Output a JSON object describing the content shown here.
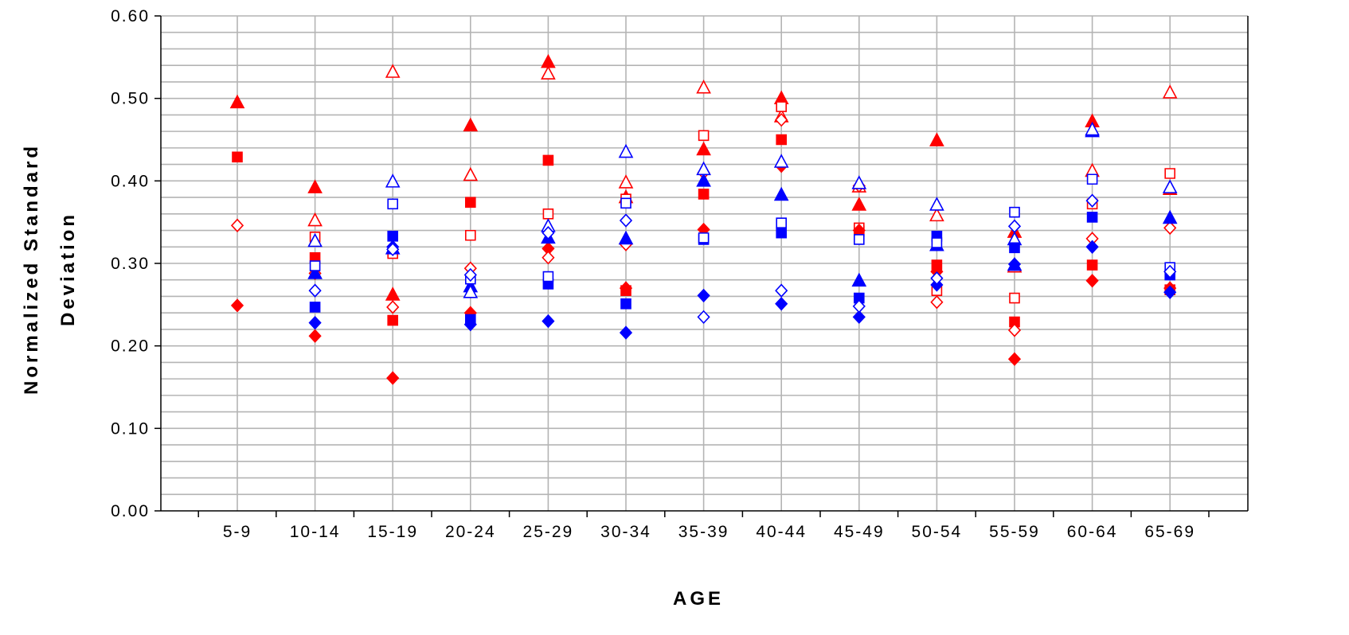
{
  "chart_data": {
    "type": "scatter",
    "xlabel": "AGE",
    "ylabel_lines": [
      "Normalized Standard",
      "Deviation"
    ],
    "categories": [
      "5-9",
      "10-14",
      "15-19",
      "20-24",
      "25-29",
      "30-34",
      "35-39",
      "40-44",
      "45-49",
      "50-54",
      "55-59",
      "60-64",
      "65-69"
    ],
    "ylim": [
      0,
      0.6
    ],
    "y_ticks": [
      "0.00",
      "0.10",
      "0.20",
      "0.30",
      "0.40",
      "0.50",
      "0.60"
    ],
    "y_minor_step": 0.02,
    "grid": true,
    "colors": {
      "red": "#ff0000",
      "blue": "#0000ff",
      "grid": "#b4b4b4"
    },
    "series": [
      {
        "color": "red",
        "marker": "triangle",
        "filled": true,
        "values": [
          0.495,
          0.392,
          0.262,
          0.467,
          0.544,
          0.38,
          0.438,
          0.5,
          0.371,
          0.449,
          0.338,
          0.472,
          0.39
        ]
      },
      {
        "color": "red",
        "marker": "triangle",
        "filled": false,
        "values": [
          null,
          0.352,
          0.532,
          0.407,
          0.53,
          0.398,
          0.513,
          0.478,
          0.393,
          0.358,
          0.296,
          0.412,
          0.507
        ]
      },
      {
        "color": "red",
        "marker": "square",
        "filled": true,
        "values": [
          0.429,
          0.307,
          0.231,
          0.374,
          0.425,
          0.267,
          0.384,
          0.45,
          0.339,
          0.298,
          0.229,
          0.298,
          0.268
        ]
      },
      {
        "color": "red",
        "marker": "square",
        "filled": false,
        "values": [
          null,
          0.332,
          0.312,
          0.334,
          0.36,
          0.378,
          0.455,
          0.49,
          0.343,
          0.267,
          0.258,
          0.372,
          0.409
        ]
      },
      {
        "color": "red",
        "marker": "diamond",
        "filled": true,
        "values": [
          0.249,
          0.212,
          0.161,
          0.24,
          0.318,
          0.27,
          0.341,
          0.418,
          0.34,
          0.29,
          0.184,
          0.279,
          0.27
        ]
      },
      {
        "color": "red",
        "marker": "diamond",
        "filled": false,
        "values": [
          0.346,
          0.288,
          0.247,
          0.294,
          0.307,
          0.323,
          0.41,
          0.474,
          0.394,
          0.253,
          0.219,
          0.33,
          0.343
        ]
      },
      {
        "color": "blue",
        "marker": "triangle",
        "filled": true,
        "values": [
          null,
          0.288,
          0.318,
          0.272,
          0.331,
          0.33,
          0.4,
          0.383,
          0.279,
          0.322,
          0.298,
          0.46,
          0.355
        ]
      },
      {
        "color": "blue",
        "marker": "triangle",
        "filled": false,
        "values": [
          null,
          0.327,
          0.399,
          0.265,
          0.345,
          0.435,
          0.414,
          0.423,
          0.397,
          0.371,
          0.329,
          0.462,
          0.392
        ]
      },
      {
        "color": "blue",
        "marker": "square",
        "filled": true,
        "values": [
          null,
          0.247,
          0.333,
          0.232,
          0.275,
          0.251,
          0.329,
          0.337,
          0.258,
          0.333,
          0.319,
          0.356,
          0.286
        ]
      },
      {
        "color": "blue",
        "marker": "square",
        "filled": false,
        "values": [
          null,
          0.297,
          0.372,
          0.281,
          0.284,
          0.373,
          0.331,
          0.349,
          0.329,
          0.325,
          0.362,
          0.402,
          0.295
        ]
      },
      {
        "color": "blue",
        "marker": "diamond",
        "filled": true,
        "values": [
          null,
          0.228,
          0.32,
          0.226,
          0.23,
          0.216,
          0.261,
          0.251,
          0.235,
          0.274,
          0.299,
          0.32,
          0.265
        ]
      },
      {
        "color": "blue",
        "marker": "diamond",
        "filled": false,
        "values": [
          null,
          0.267,
          0.317,
          0.286,
          0.337,
          0.352,
          0.235,
          0.267,
          0.248,
          0.282,
          0.345,
          0.376,
          0.29
        ]
      }
    ]
  }
}
